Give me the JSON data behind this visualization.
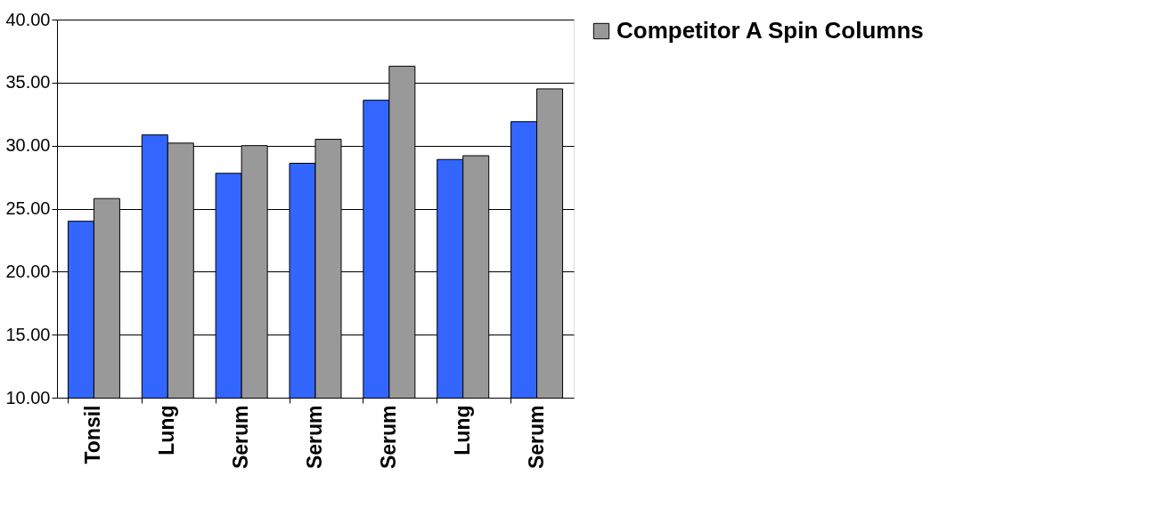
{
  "chart_data": {
    "type": "bar",
    "categories": [
      "Tonsil",
      "Lung",
      "Serum",
      "Serum",
      "Serum",
      "Lung",
      "Serum"
    ],
    "series": [
      {
        "color": "#3366ff",
        "values": [
          24.0,
          30.85,
          27.8,
          28.6,
          33.6,
          28.9,
          31.9
        ]
      },
      {
        "name": "Competitor A Spin Columns",
        "color": "#999999",
        "values": [
          25.8,
          30.2,
          30.0,
          30.5,
          36.3,
          29.2,
          34.5
        ]
      }
    ],
    "ylim": [
      10,
      40
    ],
    "yticks": [
      {
        "value": 10,
        "label": "10.00"
      },
      {
        "value": 15,
        "label": "15.00"
      },
      {
        "value": 20,
        "label": "20.00"
      },
      {
        "value": 25,
        "label": "25.00"
      },
      {
        "value": 30,
        "label": "30.00"
      },
      {
        "value": 35,
        "label": "35.00"
      },
      {
        "value": 40,
        "label": "40.00"
      }
    ],
    "grid": "y",
    "legend": "right"
  }
}
